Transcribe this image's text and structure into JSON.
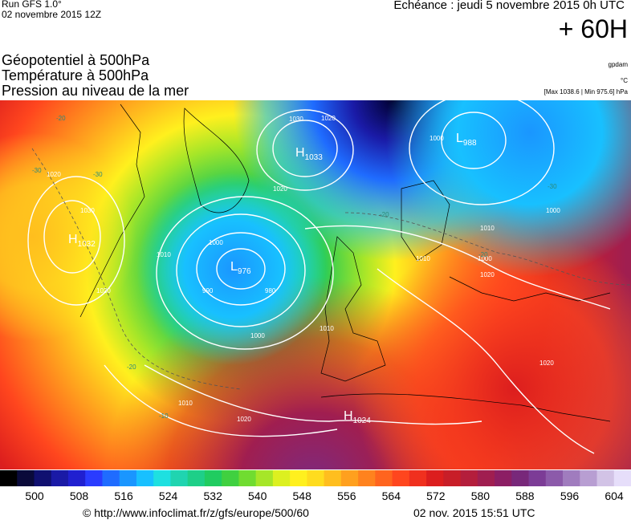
{
  "header": {
    "run_title": "Run GFS 1.0°",
    "run_date": "02 novembre 2015 12Z",
    "echeance": "Echéance : jeudi 5 novembre 2015 0h UTC",
    "lead_time": "+ 60H"
  },
  "fields": [
    "Géopotentiel à 500hPa",
    "Température à 500hPa",
    "Pression au niveau de la mer"
  ],
  "units": {
    "geopotential": "gpdam",
    "temperature": "°C",
    "pressure": "[Max 1038.6 | Min 975.6] hPa"
  },
  "map": {
    "pressure_centers": [
      {
        "type": "H",
        "value": "1033",
        "name": "high-scandinavia-west"
      },
      {
        "type": "L",
        "value": "988",
        "name": "low-northeast"
      },
      {
        "type": "H",
        "value": "1032",
        "name": "high-west-atlantic"
      },
      {
        "type": "L",
        "value": "976",
        "name": "low-central-atlantic"
      },
      {
        "type": "H",
        "value": "1024",
        "name": "high-africa"
      }
    ],
    "isobar_labels": [
      "1030",
      "1020",
      "1000",
      "1020",
      "1030",
      "1020",
      "1010",
      "1000",
      "990",
      "980",
      "1000",
      "1010",
      "1020",
      "1010",
      "1020",
      "1010",
      "1020",
      "1000",
      "1010",
      "1020",
      "1000"
    ],
    "temperature_labels": [
      "-30",
      "-20",
      "-20",
      "-30",
      "-20",
      "-10",
      "-20",
      "-30"
    ]
  },
  "colorbar": {
    "labels": [
      "500",
      "508",
      "516",
      "524",
      "532",
      "540",
      "548",
      "556",
      "564",
      "572",
      "580",
      "588",
      "596",
      "604"
    ],
    "colors": [
      "#000000",
      "#0a0a3a",
      "#101070",
      "#1a1aa6",
      "#2020d0",
      "#2a3cff",
      "#1f6cff",
      "#1a96ff",
      "#18c0ff",
      "#1ee0e0",
      "#20d4b0",
      "#1ecf88",
      "#20cc60",
      "#40d040",
      "#70dc30",
      "#a6e628",
      "#dcf020",
      "#fff01e",
      "#ffdc1e",
      "#ffbe1e",
      "#ffa01e",
      "#ff821e",
      "#ff641e",
      "#ff461e",
      "#f0301e",
      "#dc1e1e",
      "#c81e28",
      "#b41e3c",
      "#a01e50",
      "#8c1e64",
      "#78287a",
      "#7c3c96",
      "#8c5aaa",
      "#a07cbe",
      "#b89ed2",
      "#d2c3e6",
      "#e6defa"
    ]
  },
  "footer": {
    "source": "© http://www.infoclimat.fr/z/gfs/europe/500/60",
    "generated": "02 nov. 2015 15:51 UTC"
  }
}
